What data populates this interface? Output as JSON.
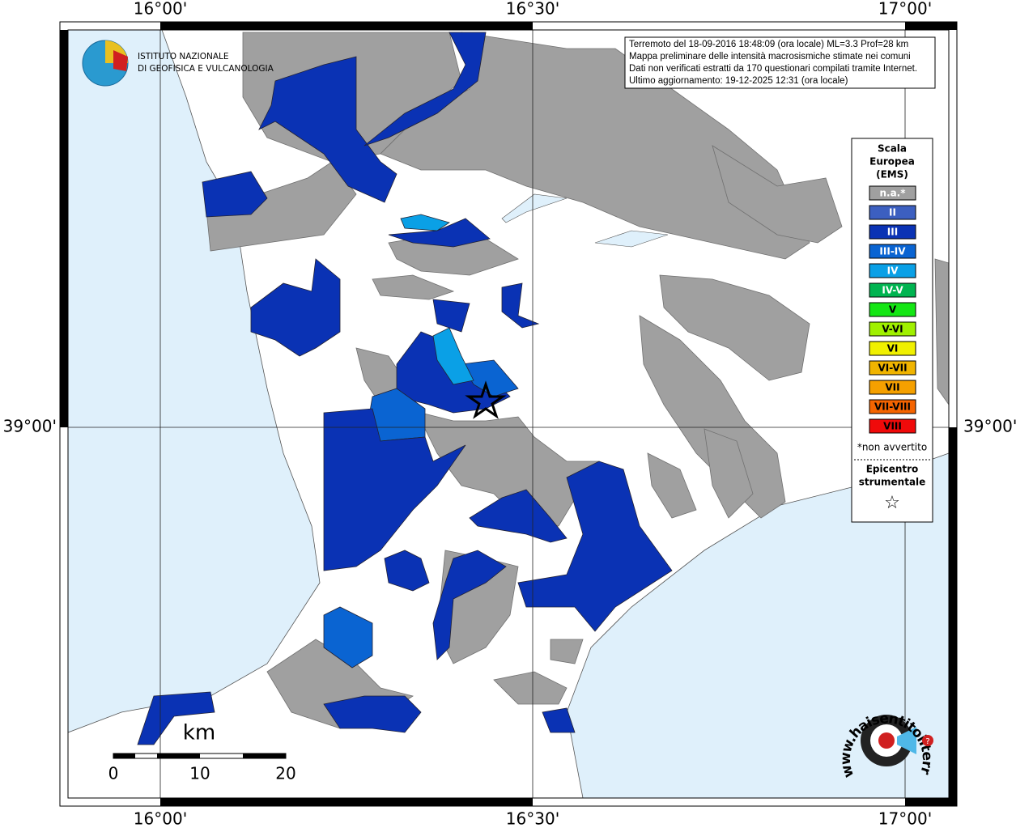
{
  "frame_labels": {
    "top": [
      "16°00'",
      "16°30'",
      "17°00'"
    ],
    "bottom": [
      "16°00'",
      "16°30'",
      "17°00'"
    ],
    "left": "39°00'",
    "right": "39°00'"
  },
  "logo": {
    "line1": "ISTITUTO NAZIONALE",
    "line2": "DI GEOFISICA E VULCANOLOGIA"
  },
  "info": [
    "Terremoto del 18-09-2016 18:48:09 (ora locale) ML=3.3 Prof=28 km",
    "Mappa preliminare delle intensità macrosismiche stimate nei comuni",
    "Dati non verificati estratti da 170 questionari compilati tramite Internet.",
    "Ultimo aggiornamento: 19-12-2025 12:31 (ora locale)"
  ],
  "legend": {
    "title": [
      "Scala",
      "Europea",
      "(EMS)"
    ],
    "items": [
      {
        "label": "n.a.*",
        "color": "#a0a0a0"
      },
      {
        "label": "II",
        "color": "#3c5fc0"
      },
      {
        "label": "III",
        "color": "#0a32b4"
      },
      {
        "label": "III-IV",
        "color": "#0a64d2"
      },
      {
        "label": "IV",
        "color": "#0aa0e6"
      },
      {
        "label": "IV-V",
        "color": "#00b450"
      },
      {
        "label": "V",
        "color": "#14e614"
      },
      {
        "label": "V-VI",
        "color": "#a0f000"
      },
      {
        "label": "VI",
        "color": "#f0f000"
      },
      {
        "label": "VI-VII",
        "color": "#f0b400"
      },
      {
        "label": "VII",
        "color": "#f5a000"
      },
      {
        "label": "VII-VIII",
        "color": "#f56400"
      },
      {
        "label": "VIII",
        "color": "#f00a0a"
      }
    ],
    "note": "*non avvertito",
    "epicenter": [
      "Epicentro",
      "strumentale"
    ],
    "star": "☆"
  },
  "scale": {
    "unit": "km",
    "ticks": [
      0,
      10,
      20
    ]
  },
  "site": {
    "text": "www.haisentitoilterremoto.it",
    "mark": "?"
  }
}
